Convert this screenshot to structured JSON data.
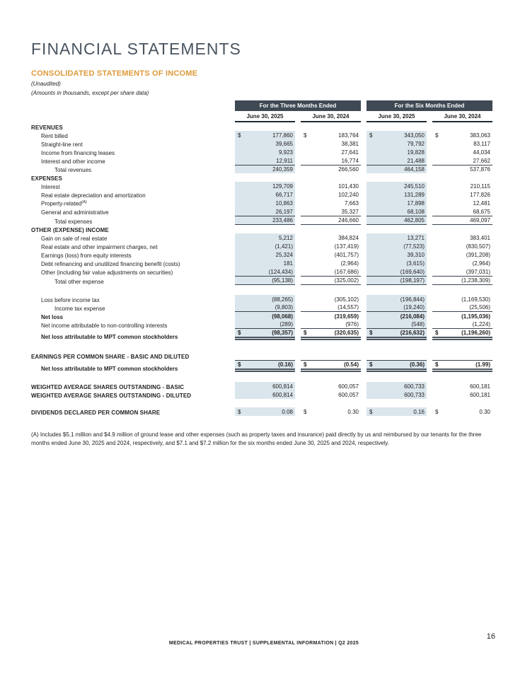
{
  "page": {
    "title": "FINANCIAL STATEMENTS",
    "subtitle": "CONSOLIDATED STATEMENTS OF INCOME",
    "note1": "(Unaudited)",
    "note2": "(Amounts in thousands, except per share data)",
    "footnote": "(A) Includes $5.1 million and $4.9 million of ground lease and other expenses (such as property taxes and insurance) paid directly by us and reimbursed by our tenants for the three months ended June 30, 2025 and 2024, respectively, and $7.1 and $7.2 million for the six months ended June 30, 2025 and 2024, respectively.",
    "footer": "MEDICAL PROPERTIES TRUST | SUPPLEMENTAL INFORMATION | Q2 2025",
    "page_number": "16"
  },
  "table": {
    "group_headers": [
      "For the Three Months Ended",
      "For the Six Months Ended"
    ],
    "column_headers": [
      "June 30, 2025",
      "June 30, 2024",
      "June 30, 2025",
      "June 30, 2024"
    ],
    "rows": [
      {
        "type": "section",
        "label": "REVENUES"
      },
      {
        "type": "data",
        "label": "Rent billed",
        "indent": 1,
        "dollar": true,
        "values": [
          "177,860",
          "183,764",
          "343,050",
          "383,063"
        ]
      },
      {
        "type": "data",
        "label": "Straight-line rent",
        "indent": 1,
        "values": [
          "39,665",
          "38,381",
          "79,792",
          "83,117"
        ]
      },
      {
        "type": "data",
        "label": "Income from financing leases",
        "indent": 1,
        "values": [
          "9,923",
          "27,641",
          "19,828",
          "44,034"
        ]
      },
      {
        "type": "data",
        "label": "Interest and other income",
        "indent": 1,
        "values": [
          "12,911",
          "16,774",
          "21,488",
          "27,662"
        ]
      },
      {
        "type": "data",
        "label": "Total revenues",
        "indent": 2,
        "top": true,
        "values": [
          "240,359",
          "266,560",
          "464,158",
          "537,876"
        ]
      },
      {
        "type": "section",
        "label": "EXPENSES"
      },
      {
        "type": "data",
        "label": "Interest",
        "indent": 1,
        "values": [
          "129,709",
          "101,430",
          "245,510",
          "210,115"
        ]
      },
      {
        "type": "data",
        "label": "Real estate depreciation and amortization",
        "indent": 1,
        "values": [
          "66,717",
          "102,240",
          "131,289",
          "177,826"
        ]
      },
      {
        "type": "data",
        "label": "Property-related",
        "sup": "(A)",
        "indent": 1,
        "values": [
          "10,863",
          "7,663",
          "17,898",
          "12,481"
        ]
      },
      {
        "type": "data",
        "label": "General and administrative",
        "indent": 1,
        "values": [
          "26,197",
          "35,327",
          "68,108",
          "68,675"
        ]
      },
      {
        "type": "data",
        "label": "Total expenses",
        "indent": 2,
        "top": true,
        "bottom": "single",
        "values": [
          "233,486",
          "246,660",
          "462,805",
          "469,097"
        ]
      },
      {
        "type": "section",
        "label": "OTHER (EXPENSE) INCOME"
      },
      {
        "type": "data",
        "label": "Gain on sale of real estate",
        "indent": 1,
        "values": [
          "5,212",
          "384,824",
          "13,271",
          "383,401"
        ]
      },
      {
        "type": "data",
        "label": "Real estate and other impairment charges, net",
        "indent": 1,
        "values": [
          "(1,421)",
          "(137,419)",
          "(77,523)",
          "(830,507)"
        ]
      },
      {
        "type": "data",
        "label": "Earnings (loss) from equity interests",
        "indent": 1,
        "values": [
          "25,324",
          "(401,757)",
          "39,310",
          "(391,208)"
        ]
      },
      {
        "type": "data",
        "label": "Debt refinancing and unutilized financing benefit (costs)",
        "indent": 1,
        "values": [
          "181",
          "(2,964)",
          "(3,615)",
          "(2,964)"
        ]
      },
      {
        "type": "data",
        "label": "Other (including fair value adjustments on securities)",
        "indent": 1,
        "values": [
          "(124,434)",
          "(167,686)",
          "(169,640)",
          "(397,031)"
        ]
      },
      {
        "type": "data",
        "label": "Total other expense",
        "indent": 2,
        "top": true,
        "bottom": "single",
        "values": [
          "(95,138)",
          "(325,002)",
          "(198,197)",
          "(1,238,309)"
        ]
      },
      {
        "type": "spacer",
        "h": 14
      },
      {
        "type": "data",
        "label": "Loss before income tax",
        "indent": 1,
        "values": [
          "(88,265)",
          "(305,102)",
          "(196,844)",
          "(1,169,530)"
        ]
      },
      {
        "type": "data",
        "label": "Income tax expense",
        "indent": 2,
        "bottom": "single",
        "values": [
          "(9,803)",
          "(14,557)",
          "(19,240)",
          "(25,506)"
        ]
      },
      {
        "type": "data",
        "label": "Net loss",
        "indent": 1,
        "bold": true,
        "values": [
          "(98,068)",
          "(319,659)",
          "(216,084)",
          "(1,195,036)"
        ]
      },
      {
        "type": "data",
        "label": "Net income attributable to non-controlling interests",
        "indent": 1,
        "bottom": "single",
        "values": [
          "(289)",
          "(976)",
          "(548)",
          "(1,224)"
        ]
      },
      {
        "type": "data",
        "label": "Net loss attributable to MPT common stockholders",
        "indent": 1,
        "bold": true,
        "dollar": true,
        "bottom": "double",
        "values": [
          "(98,357)",
          "(320,635)",
          "(216,632)",
          "(1,196,260)"
        ]
      },
      {
        "type": "spacer",
        "h": 16
      },
      {
        "type": "section",
        "label": "EARNINGS PER COMMON SHARE - BASIC AND DILUTED"
      },
      {
        "type": "data",
        "label": "Net loss attributable to MPT common stockholders",
        "indent": 1,
        "bold": true,
        "dollar": true,
        "top": true,
        "bottom": "double",
        "values": [
          "(0.16)",
          "(0.54)",
          "(0.36)",
          "(1.99)"
        ]
      },
      {
        "type": "spacer",
        "h": 14
      },
      {
        "type": "data",
        "label": "WEIGHTED AVERAGE SHARES OUTSTANDING - BASIC",
        "indent": 0,
        "sec": true,
        "values": [
          "600,814",
          "600,057",
          "600,733",
          "600,181"
        ]
      },
      {
        "type": "data",
        "label": "WEIGHTED AVERAGE SHARES OUTSTANDING - DILUTED",
        "indent": 0,
        "sec": true,
        "values": [
          "600,814",
          "600,057",
          "600,733",
          "600,181"
        ]
      },
      {
        "type": "spacer",
        "h": 12
      },
      {
        "type": "data",
        "label": "DIVIDENDS DECLARED PER COMMON SHARE",
        "indent": 0,
        "sec": true,
        "dollar": true,
        "values": [
          "0.08",
          "0.30",
          "0.16",
          "0.30"
        ]
      }
    ]
  }
}
